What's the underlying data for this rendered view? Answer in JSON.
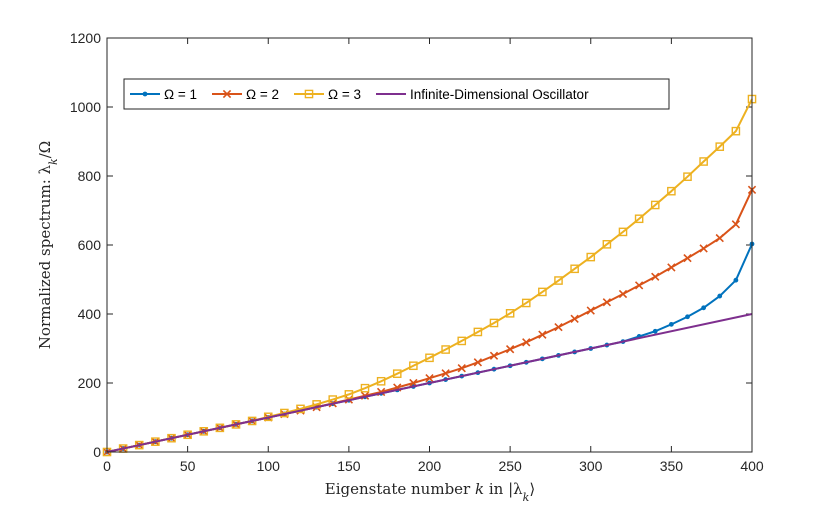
{
  "chart_data": {
    "type": "line",
    "title": "",
    "xlabel": "Eigenstate number k in |λ_k⟩",
    "ylabel": "Normalized spectrum: λ_k/Ω",
    "xlim": [
      0,
      400
    ],
    "ylim": [
      0,
      1200
    ],
    "xticks": [
      0,
      50,
      100,
      150,
      200,
      250,
      300,
      350,
      400
    ],
    "yticks": [
      0,
      200,
      400,
      600,
      800,
      1000,
      1200
    ],
    "grid": false,
    "legend_position": "top-left, horizontal",
    "x": [
      0,
      10,
      20,
      30,
      40,
      50,
      60,
      70,
      80,
      90,
      100,
      110,
      120,
      130,
      140,
      150,
      160,
      170,
      180,
      190,
      200,
      210,
      220,
      230,
      240,
      250,
      260,
      270,
      280,
      290,
      300,
      310,
      320,
      330,
      340,
      350,
      360,
      370,
      380,
      390,
      400
    ],
    "series": [
      {
        "name": "Ω = 1",
        "color": "#0072bd",
        "marker": "dot",
        "values": [
          0,
          10,
          20,
          30,
          40,
          50,
          60,
          70,
          80,
          90,
          100,
          110,
          120,
          130,
          140,
          150,
          160,
          170,
          180,
          190,
          200,
          210,
          220,
          230,
          240,
          250,
          260,
          270,
          280,
          290,
          300,
          310,
          320,
          335,
          350,
          370,
          392,
          418,
          452,
          498,
          603
        ]
      },
      {
        "name": "Ω = 2",
        "color": "#d95319",
        "marker": "x",
        "values": [
          0,
          10,
          20,
          30,
          40,
          50,
          60,
          70,
          80,
          90,
          100,
          110,
          120,
          130,
          141,
          152,
          163,
          174,
          187,
          200,
          214,
          228,
          243,
          260,
          279,
          298,
          318,
          340,
          362,
          386,
          410,
          434,
          458,
          483,
          508,
          535,
          562,
          590,
          620,
          660,
          760
        ]
      },
      {
        "name": "Ω = 3",
        "color": "#edb120",
        "marker": "square",
        "values": [
          0,
          10,
          20,
          30,
          40,
          50,
          60,
          70,
          80,
          90,
          102,
          113,
          125,
          138,
          152,
          167,
          185,
          205,
          227,
          250,
          273,
          297,
          322,
          348,
          374,
          402,
          432,
          464,
          497,
          531,
          565,
          602,
          638,
          676,
          716,
          756,
          798,
          842,
          885,
          930,
          1023
        ]
      },
      {
        "name": "Infinite-Dimensional Oscillator",
        "color": "#7e2f8e",
        "marker": "none",
        "x": [
          0,
          400
        ],
        "values": [
          0,
          400
        ]
      }
    ]
  }
}
